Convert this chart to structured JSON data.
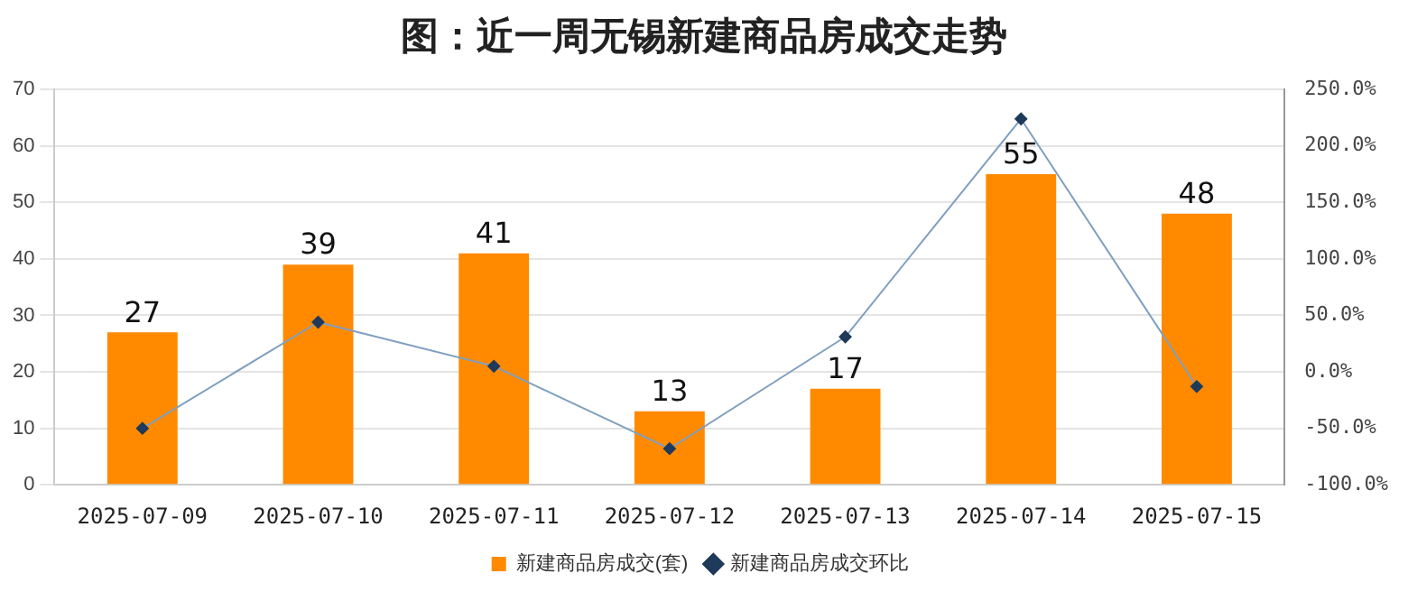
{
  "chart_data": {
    "type": "bar",
    "title": "图：近一周无锡新建商品房成交走势",
    "categories": [
      "2025-07-09",
      "2025-07-10",
      "2025-07-11",
      "2025-07-12",
      "2025-07-13",
      "2025-07-14",
      "2025-07-15"
    ],
    "series": [
      {
        "name": "新建商品房成交(套)",
        "color": "#ff8a00",
        "values": [
          27,
          39,
          41,
          13,
          17,
          55,
          48
        ],
        "data_labels": true
      },
      {
        "name": "新建商品房成交环比",
        "type": "line",
        "axis": "y2",
        "color": "#7f9fc0",
        "marker": "diamond",
        "values": [
          -50,
          44,
          5,
          -68,
          31,
          224,
          -13
        ]
      }
    ],
    "ylim": [
      0,
      70
    ],
    "yticks": [
      0,
      10,
      20,
      30,
      40,
      50,
      60,
      70
    ],
    "y2lim": [
      -100,
      250
    ],
    "y2ticks": [
      {
        "value": -100,
        "label": "-100.0%"
      },
      {
        "value": -50,
        "label": "-50.0%"
      },
      {
        "value": 0,
        "label": "0.0%"
      },
      {
        "value": 50,
        "label": "50.0%"
      },
      {
        "value": 100,
        "label": "100.0%"
      },
      {
        "value": 150,
        "label": "150.0%"
      },
      {
        "value": 200,
        "label": "200.0%"
      },
      {
        "value": 250,
        "label": "250.0%"
      }
    ],
    "grid": "y",
    "legend": "bottom"
  }
}
